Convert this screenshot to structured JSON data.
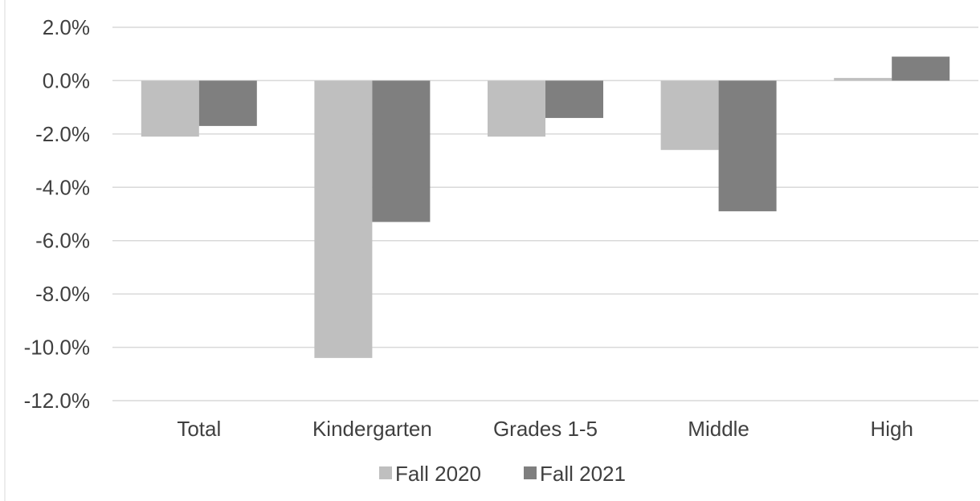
{
  "chart_data": {
    "type": "bar",
    "title": "",
    "xlabel": "",
    "ylabel": "",
    "categories": [
      "Total",
      "Kindergarten",
      "Grades 1-5",
      "Middle",
      "High"
    ],
    "series": [
      {
        "name": "Fall 2020",
        "color": "#bfbfbf",
        "values": [
          -2.1,
          -10.4,
          -2.1,
          -2.6,
          0.1
        ]
      },
      {
        "name": "Fall 2021",
        "color": "#7f7f7f",
        "values": [
          -1.7,
          -5.3,
          -1.4,
          -4.9,
          0.9
        ]
      }
    ],
    "ylim": [
      -12.0,
      2.0
    ],
    "y_ticks": [
      2.0,
      0.0,
      -2.0,
      -4.0,
      -6.0,
      -8.0,
      -10.0,
      -12.0
    ],
    "y_tick_labels": [
      "2.0%",
      "0.0%",
      "-2.0%",
      "-4.0%",
      "-6.0%",
      "-8.0%",
      "-10.0%",
      "-12.0%"
    ],
    "grid": true,
    "legend_position": "bottom"
  }
}
